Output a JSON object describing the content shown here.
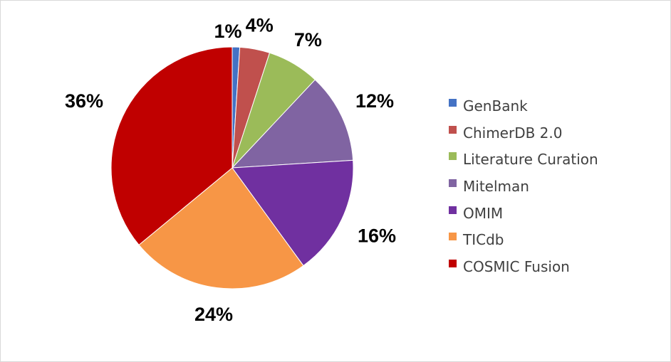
{
  "chart_data": {
    "type": "pie",
    "categories": [
      "GenBank",
      "ChimerDB 2.0",
      "Literature Curation",
      "Mitelman",
      "OMIM",
      "TICdb",
      "COSMIC Fusion"
    ],
    "values": [
      1,
      4,
      7,
      12,
      16,
      24,
      36
    ],
    "labels": [
      "1%",
      "4%",
      "7%",
      "12%",
      "16%",
      "24%",
      "36%"
    ],
    "colors": [
      "#4472c4",
      "#c0504d",
      "#9bbb59",
      "#8064a2",
      "#7030a0",
      "#f79646",
      "#c00000"
    ],
    "legend_position": "right"
  }
}
